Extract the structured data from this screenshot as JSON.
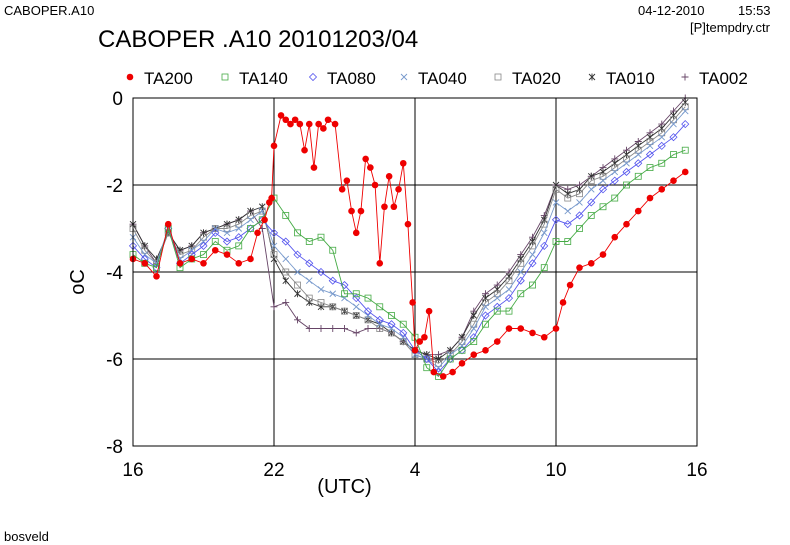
{
  "header": {
    "file": "CABOPER.A10",
    "date": "04-12-2010",
    "time": "15:53",
    "ctr": "[P]tempdry.ctr"
  },
  "footer": {
    "text": "bosveld"
  },
  "chart_data": {
    "type": "line",
    "title": "CABOPER .A10 20101203/04",
    "xlabel": "(UTC)",
    "ylabel": "oC",
    "xlim": [
      16,
      40
    ],
    "ylim": [
      -8,
      0
    ],
    "x_ticks": [
      16,
      22,
      28,
      34,
      40
    ],
    "x_tick_labels": [
      "16",
      "22",
      "4",
      "10",
      "16"
    ],
    "y_ticks": [
      0,
      -2,
      -4,
      -6,
      -8
    ],
    "y_tick_labels": [
      "0",
      "-2",
      "-4",
      "-6",
      "-8"
    ],
    "grid": true,
    "legend_position": "top",
    "series": [
      {
        "name": "TA200",
        "marker": "dot",
        "color": "#ee0000",
        "x": [
          16.0,
          16.5,
          17.0,
          17.5,
          18.0,
          18.5,
          19.0,
          19.5,
          20.0,
          20.5,
          21.0,
          21.3,
          21.6,
          21.8,
          21.9,
          22.0,
          22.3,
          22.5,
          22.7,
          22.9,
          23.1,
          23.3,
          23.5,
          23.7,
          23.9,
          24.1,
          24.3,
          24.6,
          24.9,
          25.1,
          25.3,
          25.5,
          25.7,
          25.9,
          26.1,
          26.3,
          26.5,
          26.7,
          26.9,
          27.1,
          27.3,
          27.5,
          27.7,
          27.9,
          28.0,
          28.2,
          28.4,
          28.6,
          28.8,
          29.2,
          29.6,
          30.0,
          30.5,
          31.0,
          31.5,
          32.0,
          32.5,
          33.0,
          33.5,
          34.0,
          34.3,
          34.6,
          35.0,
          35.5,
          36.0,
          36.5,
          37.0,
          37.5,
          38.0,
          38.5,
          39.0,
          39.5
        ],
        "y": [
          -3.7,
          -3.8,
          -4.1,
          -2.9,
          -3.8,
          -3.7,
          -3.8,
          -3.5,
          -3.6,
          -3.8,
          -3.7,
          -3.1,
          -2.8,
          -2.4,
          -2.3,
          -1.1,
          -0.4,
          -0.5,
          -0.6,
          -0.5,
          -0.6,
          -1.2,
          -0.6,
          -1.6,
          -0.6,
          -0.7,
          -0.5,
          -0.6,
          -2.1,
          -1.9,
          -2.6,
          -3.1,
          -2.6,
          -1.4,
          -1.6,
          -2.0,
          -3.8,
          -2.5,
          -1.8,
          -2.5,
          -2.1,
          -1.5,
          -2.9,
          -4.7,
          -5.8,
          -5.6,
          -5.5,
          -4.9,
          -6.3,
          -6.4,
          -6.3,
          -6.1,
          -5.9,
          -5.8,
          -5.6,
          -5.3,
          -5.3,
          -5.4,
          -5.5,
          -5.3,
          -4.7,
          -4.3,
          -3.9,
          -3.8,
          -3.6,
          -3.2,
          -2.9,
          -2.6,
          -2.3,
          -2.1,
          -1.9,
          -1.7
        ]
      },
      {
        "name": "TA140",
        "marker": "square",
        "color": "#44aa44",
        "x": [
          16.0,
          16.5,
          17.0,
          17.5,
          18.0,
          18.5,
          19.0,
          19.5,
          20.0,
          20.5,
          21.0,
          21.5,
          22.0,
          22.5,
          23.0,
          23.5,
          24.0,
          24.5,
          25.0,
          25.5,
          26.0,
          26.5,
          27.0,
          27.5,
          28.0,
          28.5,
          29.0,
          29.5,
          30.0,
          30.5,
          31.0,
          31.5,
          32.0,
          32.5,
          33.0,
          33.5,
          34.0,
          34.5,
          35.0,
          35.5,
          36.0,
          36.5,
          37.0,
          37.5,
          38.0,
          38.5,
          39.0,
          39.5
        ],
        "y": [
          -3.6,
          -3.8,
          -3.9,
          -3.0,
          -3.9,
          -3.7,
          -3.6,
          -3.3,
          -3.5,
          -3.4,
          -3.0,
          -2.8,
          -2.3,
          -2.7,
          -3.1,
          -3.3,
          -3.2,
          -3.5,
          -4.5,
          -4.5,
          -4.6,
          -4.8,
          -5.0,
          -5.2,
          -5.5,
          -6.2,
          -6.4,
          -6.0,
          -5.8,
          -5.6,
          -5.2,
          -4.9,
          -4.9,
          -4.5,
          -4.3,
          -3.9,
          -3.3,
          -3.3,
          -3.0,
          -2.7,
          -2.5,
          -2.3,
          -2.0,
          -1.8,
          -1.6,
          -1.5,
          -1.3,
          -1.2
        ]
      },
      {
        "name": "TA080",
        "marker": "diamond",
        "color": "#5555ee",
        "x": [
          16.0,
          16.5,
          17.0,
          17.5,
          18.0,
          18.5,
          19.0,
          19.5,
          20.0,
          20.5,
          21.0,
          21.5,
          22.0,
          22.5,
          23.0,
          23.5,
          24.0,
          24.5,
          25.0,
          25.5,
          26.0,
          26.5,
          27.0,
          27.5,
          28.0,
          28.5,
          29.0,
          29.5,
          30.0,
          30.5,
          31.0,
          31.5,
          32.0,
          32.5,
          33.0,
          33.5,
          34.0,
          34.5,
          35.0,
          35.5,
          36.0,
          36.5,
          37.0,
          37.5,
          38.0,
          38.5,
          39.0,
          39.5
        ],
        "y": [
          -3.4,
          -3.7,
          -3.9,
          -3.0,
          -3.8,
          -3.6,
          -3.4,
          -3.1,
          -3.3,
          -3.2,
          -3.0,
          -2.8,
          -3.1,
          -3.3,
          -3.6,
          -3.8,
          -4.0,
          -4.2,
          -4.3,
          -4.6,
          -4.9,
          -5.1,
          -5.2,
          -5.4,
          -5.8,
          -6.0,
          -6.3,
          -6.0,
          -5.8,
          -5.5,
          -5.0,
          -4.8,
          -4.6,
          -4.2,
          -3.8,
          -3.4,
          -2.8,
          -2.9,
          -2.7,
          -2.4,
          -2.1,
          -1.9,
          -1.7,
          -1.5,
          -1.3,
          -1.1,
          -0.9,
          -0.6
        ]
      },
      {
        "name": "TA040",
        "marker": "cross",
        "color": "#7799cc",
        "x": [
          16.0,
          16.5,
          17.0,
          17.5,
          18.0,
          18.5,
          19.0,
          19.5,
          20.0,
          20.5,
          21.0,
          21.5,
          22.0,
          22.5,
          23.0,
          23.5,
          24.0,
          24.5,
          25.0,
          25.5,
          26.0,
          26.5,
          27.0,
          27.5,
          28.0,
          28.5,
          29.0,
          29.5,
          30.0,
          30.5,
          31.0,
          31.5,
          32.0,
          32.5,
          33.0,
          33.5,
          34.0,
          34.5,
          35.0,
          35.5,
          36.0,
          36.5,
          37.0,
          37.5,
          38.0,
          38.5,
          39.0,
          39.5
        ],
        "y": [
          -3.2,
          -3.6,
          -3.8,
          -3.0,
          -3.7,
          -3.5,
          -3.3,
          -3.0,
          -3.1,
          -3.0,
          -2.8,
          -2.6,
          -3.4,
          -3.7,
          -4.0,
          -4.2,
          -4.4,
          -4.5,
          -4.6,
          -4.8,
          -5.0,
          -5.2,
          -5.3,
          -5.5,
          -5.9,
          -6.0,
          -6.2,
          -5.9,
          -5.7,
          -5.3,
          -4.8,
          -4.6,
          -4.4,
          -4.0,
          -3.6,
          -3.1,
          -2.4,
          -2.6,
          -2.4,
          -2.1,
          -1.9,
          -1.7,
          -1.5,
          -1.3,
          -1.1,
          -0.9,
          -0.6,
          -0.3
        ]
      },
      {
        "name": "TA020",
        "marker": "square",
        "color": "#888888",
        "x": [
          16.0,
          16.5,
          17.0,
          17.5,
          18.0,
          18.5,
          19.0,
          19.5,
          20.0,
          20.5,
          21.0,
          21.5,
          22.0,
          22.5,
          23.0,
          23.5,
          24.0,
          24.5,
          25.0,
          25.5,
          26.0,
          26.5,
          27.0,
          27.5,
          28.0,
          28.5,
          29.0,
          29.5,
          30.0,
          30.5,
          31.0,
          31.5,
          32.0,
          32.5,
          33.0,
          33.5,
          34.0,
          34.5,
          35.0,
          35.5,
          36.0,
          36.5,
          37.0,
          37.5,
          38.0,
          38.5,
          39.0,
          39.5
        ],
        "y": [
          -3.0,
          -3.5,
          -3.8,
          -3.1,
          -3.6,
          -3.5,
          -3.2,
          -3.0,
          -3.0,
          -2.9,
          -2.7,
          -2.6,
          -3.6,
          -4.0,
          -4.3,
          -4.6,
          -4.7,
          -4.8,
          -4.9,
          -5.0,
          -5.1,
          -5.3,
          -5.4,
          -5.6,
          -5.9,
          -6.0,
          -6.1,
          -5.9,
          -5.6,
          -5.2,
          -4.7,
          -4.5,
          -4.2,
          -3.8,
          -3.4,
          -2.9,
          -2.1,
          -2.3,
          -2.2,
          -1.9,
          -1.8,
          -1.6,
          -1.4,
          -1.2,
          -1.0,
          -0.8,
          -0.5,
          -0.2
        ]
      },
      {
        "name": "TA010",
        "marker": "star",
        "color": "#333333",
        "x": [
          16.0,
          16.5,
          17.0,
          17.5,
          18.0,
          18.5,
          19.0,
          19.5,
          20.0,
          20.5,
          21.0,
          21.5,
          22.0,
          22.5,
          23.0,
          23.5,
          24.0,
          24.5,
          25.0,
          25.5,
          26.0,
          26.5,
          27.0,
          27.5,
          28.0,
          28.5,
          29.0,
          29.5,
          30.0,
          30.5,
          31.0,
          31.5,
          32.0,
          32.5,
          33.0,
          33.5,
          34.0,
          34.5,
          35.0,
          35.5,
          36.0,
          36.5,
          37.0,
          37.5,
          38.0,
          38.5,
          39.0,
          39.5
        ],
        "y": [
          -2.9,
          -3.4,
          -3.7,
          -3.1,
          -3.5,
          -3.4,
          -3.1,
          -3.0,
          -2.9,
          -2.8,
          -2.6,
          -2.5,
          -3.7,
          -4.2,
          -4.5,
          -4.7,
          -4.8,
          -4.8,
          -4.9,
          -5.0,
          -5.1,
          -5.2,
          -5.4,
          -5.6,
          -5.8,
          -5.9,
          -6.0,
          -5.8,
          -5.5,
          -5.0,
          -4.6,
          -4.4,
          -4.1,
          -3.7,
          -3.3,
          -2.8,
          -2.0,
          -2.2,
          -2.1,
          -1.8,
          -1.7,
          -1.5,
          -1.3,
          -1.1,
          -0.9,
          -0.7,
          -0.4,
          -0.1
        ]
      },
      {
        "name": "TA002",
        "marker": "plus",
        "color": "#664466",
        "x": [
          16.0,
          16.5,
          17.0,
          17.5,
          18.0,
          18.5,
          19.0,
          19.5,
          20.0,
          20.5,
          21.0,
          21.5,
          22.0,
          22.5,
          23.0,
          23.5,
          24.0,
          24.5,
          25.0,
          25.5,
          26.0,
          26.5,
          27.0,
          27.5,
          28.0,
          28.5,
          29.0,
          29.5,
          30.0,
          30.5,
          31.0,
          31.5,
          32.0,
          32.5,
          33.0,
          33.5,
          34.0,
          34.5,
          35.0,
          35.5,
          36.0,
          36.5,
          37.0,
          37.5,
          38.0,
          38.5,
          39.0,
          39.5
        ],
        "y": [
          -2.9,
          -3.4,
          -3.8,
          -3.1,
          -3.5,
          -3.4,
          -3.1,
          -3.0,
          -2.9,
          -2.8,
          -2.6,
          -3.0,
          -4.8,
          -4.7,
          -5.1,
          -5.3,
          -5.3,
          -5.3,
          -5.3,
          -5.4,
          -5.3,
          -5.3,
          -5.4,
          -5.6,
          -5.8,
          -5.9,
          -5.9,
          -5.8,
          -5.5,
          -4.9,
          -4.5,
          -4.3,
          -4.0,
          -3.6,
          -3.2,
          -2.7,
          -2.0,
          -2.1,
          -2.0,
          -1.8,
          -1.6,
          -1.4,
          -1.2,
          -1.0,
          -0.8,
          -0.6,
          -0.3,
          0.0
        ]
      }
    ]
  }
}
